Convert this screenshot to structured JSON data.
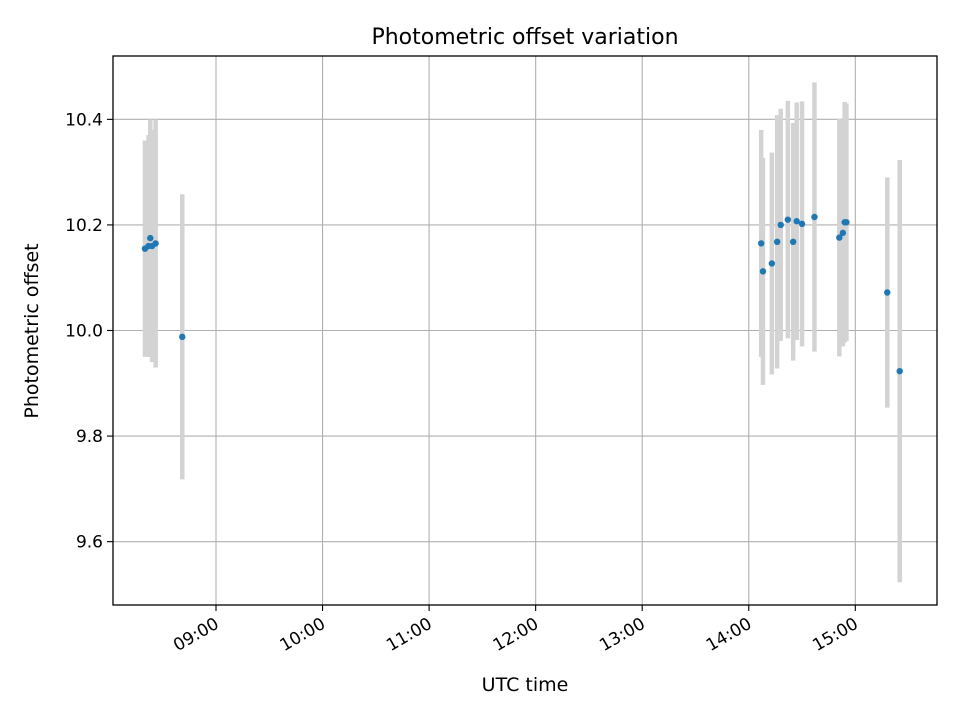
{
  "chart_data": {
    "type": "scatter",
    "title": "Photometric offset variation",
    "xlabel": "UTC time",
    "ylabel": "Photometric offset",
    "x_is_time": true,
    "x_tick_labels": [
      "09:00",
      "10:00",
      "11:00",
      "12:00",
      "13:00",
      "14:00",
      "15:00"
    ],
    "x_ticks": [
      "09:00",
      "10:00",
      "11:00",
      "12:00",
      "13:00",
      "14:00",
      "15:00"
    ],
    "xlim": [
      "08:02",
      "15:46"
    ],
    "y_ticks": [
      9.6,
      9.8,
      10.0,
      10.2,
      10.4
    ],
    "y_tick_labels": [
      "9.6",
      "9.8",
      "10.0",
      "10.2",
      "10.4"
    ],
    "ylim": [
      9.48,
      10.52
    ],
    "grid": true,
    "colors": {
      "points": "#1f77b4",
      "errorbars": "#d3d3d3",
      "grid": "#b0b0b0"
    },
    "series": [
      {
        "points": [
          {
            "x": "08:20",
            "y": 10.155,
            "yerr": 0.205
          },
          {
            "x": "08:22",
            "y": 10.16,
            "yerr": 0.21
          },
          {
            "x": "08:23",
            "y": 10.175,
            "yerr": 0.225
          },
          {
            "x": "08:24",
            "y": 10.16,
            "yerr": 0.22
          },
          {
            "x": "08:26",
            "y": 10.165,
            "yerr": 0.235
          },
          {
            "x": "08:41",
            "y": 9.988,
            "yerr": 0.27
          },
          {
            "x": "14:07",
            "y": 10.165,
            "yerr": 0.215
          },
          {
            "x": "14:08",
            "y": 10.112,
            "yerr": 0.215
          },
          {
            "x": "14:13",
            "y": 10.127,
            "yerr": 0.21
          },
          {
            "x": "14:16",
            "y": 10.168,
            "yerr": 0.24
          },
          {
            "x": "14:18",
            "y": 10.2,
            "yerr": 0.22
          },
          {
            "x": "14:22",
            "y": 10.21,
            "yerr": 0.225
          },
          {
            "x": "14:25",
            "y": 10.168,
            "yerr": 0.225
          },
          {
            "x": "14:27",
            "y": 10.207,
            "yerr": 0.225
          },
          {
            "x": "14:30",
            "y": 10.202,
            "yerr": 0.232
          },
          {
            "x": "14:37",
            "y": 10.215,
            "yerr": 0.255
          },
          {
            "x": "14:51",
            "y": 10.176,
            "yerr": 0.225
          },
          {
            "x": "14:53",
            "y": 10.185,
            "yerr": 0.215
          },
          {
            "x": "14:54",
            "y": 10.205,
            "yerr": 0.228
          },
          {
            "x": "14:55",
            "y": 10.205,
            "yerr": 0.225
          },
          {
            "x": "15:18",
            "y": 10.072,
            "yerr": 0.218
          },
          {
            "x": "15:25",
            "y": 9.923,
            "yerr": 0.4
          }
        ]
      }
    ]
  }
}
